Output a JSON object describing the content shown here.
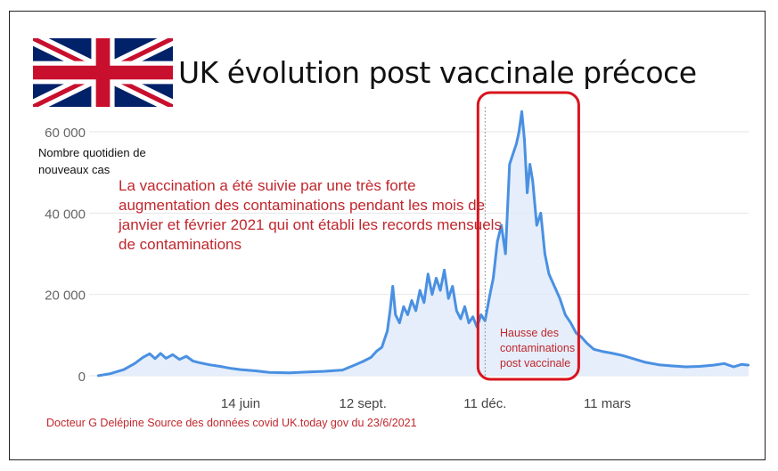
{
  "title": "UK évolution post vaccinale précoce",
  "y_axis_label": "Nombre quotidien de nouveaux cas",
  "annotation": "La vaccination a été suivie par une très forte augmentation des contaminations pendant les mois de janvier et février 2021 qui ont établi les records mensuels de contaminations",
  "highlight_label": "Hausse des contaminations post vaccinale",
  "source": "Docteur G Delépine Source des données covid    UK.today gov du 23/6/2021",
  "colors": {
    "line": "#4a90e2",
    "area": "#dfeaf9",
    "accent": "#d8141e",
    "grid": "#e6e6e6"
  },
  "flag_icon": "union-jack-flag",
  "chart_data": {
    "type": "area",
    "title": "UK évolution post vaccinale précoce",
    "ylabel": "Nombre quotidien de nouveaux cas",
    "ylim": [
      0,
      60000
    ],
    "grid": true,
    "y_ticks": [
      {
        "value": 0,
        "label": "0"
      },
      {
        "value": 20000,
        "label": "20 000"
      },
      {
        "value": 40000,
        "label": "40 000"
      },
      {
        "value": 60000,
        "label": "60 000"
      }
    ],
    "x_ticks": [
      {
        "value": "2020-06-14",
        "label": "14 juin"
      },
      {
        "value": "2020-09-12",
        "label": "12 sept."
      },
      {
        "value": "2020-12-11",
        "label": "11 déc."
      },
      {
        "value": "2021-03-11",
        "label": "11 mars"
      }
    ],
    "xlim": [
      "2020-03-01",
      "2021-06-23"
    ],
    "series": [
      {
        "points": [
          [
            "2020-03-01",
            0
          ],
          [
            "2020-03-10",
            500
          ],
          [
            "2020-03-20",
            1500
          ],
          [
            "2020-03-28",
            3000
          ],
          [
            "2020-04-03",
            4500
          ],
          [
            "2020-04-08",
            5400
          ],
          [
            "2020-04-12",
            4200
          ],
          [
            "2020-04-16",
            5500
          ],
          [
            "2020-04-20",
            4300
          ],
          [
            "2020-04-25",
            5200
          ],
          [
            "2020-04-30",
            4000
          ],
          [
            "2020-05-05",
            4800
          ],
          [
            "2020-05-10",
            3600
          ],
          [
            "2020-05-15",
            3200
          ],
          [
            "2020-05-22",
            2700
          ],
          [
            "2020-05-30",
            2300
          ],
          [
            "2020-06-07",
            1800
          ],
          [
            "2020-06-14",
            1500
          ],
          [
            "2020-06-25",
            1200
          ],
          [
            "2020-07-05",
            800
          ],
          [
            "2020-07-20",
            700
          ],
          [
            "2020-08-01",
            900
          ],
          [
            "2020-08-15",
            1100
          ],
          [
            "2020-08-28",
            1400
          ],
          [
            "2020-09-05",
            2500
          ],
          [
            "2020-09-12",
            3500
          ],
          [
            "2020-09-18",
            4500
          ],
          [
            "2020-09-22",
            6000
          ],
          [
            "2020-09-26",
            7000
          ],
          [
            "2020-09-30",
            11000
          ],
          [
            "2020-10-02",
            16000
          ],
          [
            "2020-10-04",
            22000
          ],
          [
            "2020-10-06",
            15000
          ],
          [
            "2020-10-09",
            13000
          ],
          [
            "2020-10-12",
            17000
          ],
          [
            "2020-10-15",
            15000
          ],
          [
            "2020-10-18",
            18500
          ],
          [
            "2020-10-21",
            16000
          ],
          [
            "2020-10-24",
            21000
          ],
          [
            "2020-10-27",
            18000
          ],
          [
            "2020-10-30",
            25000
          ],
          [
            "2020-11-02",
            20000
          ],
          [
            "2020-11-05",
            24000
          ],
          [
            "2020-11-08",
            21000
          ],
          [
            "2020-11-11",
            26000
          ],
          [
            "2020-11-14",
            19000
          ],
          [
            "2020-11-17",
            22000
          ],
          [
            "2020-11-20",
            16000
          ],
          [
            "2020-11-23",
            14000
          ],
          [
            "2020-11-26",
            17000
          ],
          [
            "2020-11-29",
            13000
          ],
          [
            "2020-12-02",
            14500
          ],
          [
            "2020-12-05",
            12000
          ],
          [
            "2020-12-08",
            15000
          ],
          [
            "2020-12-11",
            13500
          ],
          [
            "2020-12-14",
            19000
          ],
          [
            "2020-12-17",
            24000
          ],
          [
            "2020-12-20",
            33000
          ],
          [
            "2020-12-23",
            37000
          ],
          [
            "2020-12-26",
            30000
          ],
          [
            "2020-12-29",
            52000
          ],
          [
            "2021-01-01",
            55000
          ],
          [
            "2021-01-03",
            57000
          ],
          [
            "2021-01-05",
            60000
          ],
          [
            "2021-01-07",
            65000
          ],
          [
            "2021-01-09",
            58000
          ],
          [
            "2021-01-11",
            45000
          ],
          [
            "2021-01-13",
            52000
          ],
          [
            "2021-01-15",
            48000
          ],
          [
            "2021-01-18",
            37000
          ],
          [
            "2021-01-21",
            40000
          ],
          [
            "2021-01-24",
            30000
          ],
          [
            "2021-01-27",
            25000
          ],
          [
            "2021-01-31",
            22000
          ],
          [
            "2021-02-04",
            19000
          ],
          [
            "2021-02-08",
            15000
          ],
          [
            "2021-02-12",
            13000
          ],
          [
            "2021-02-16",
            10500
          ],
          [
            "2021-02-20",
            9500
          ],
          [
            "2021-02-24",
            8000
          ],
          [
            "2021-03-01",
            6500
          ],
          [
            "2021-03-07",
            6000
          ],
          [
            "2021-03-15",
            5500
          ],
          [
            "2021-03-22",
            5000
          ],
          [
            "2021-03-30",
            4200
          ],
          [
            "2021-04-08",
            3300
          ],
          [
            "2021-04-18",
            2700
          ],
          [
            "2021-04-28",
            2400
          ],
          [
            "2021-05-08",
            2200
          ],
          [
            "2021-05-18",
            2300
          ],
          [
            "2021-05-28",
            2600
          ],
          [
            "2021-06-05",
            3000
          ],
          [
            "2021-06-12",
            2200
          ],
          [
            "2021-06-18",
            2800
          ],
          [
            "2021-06-23",
            2600
          ]
        ]
      }
    ],
    "highlight": {
      "from": "2020-12-11",
      "to": "2021-01-24",
      "label": "Hausse des contaminations post vaccinale"
    }
  }
}
